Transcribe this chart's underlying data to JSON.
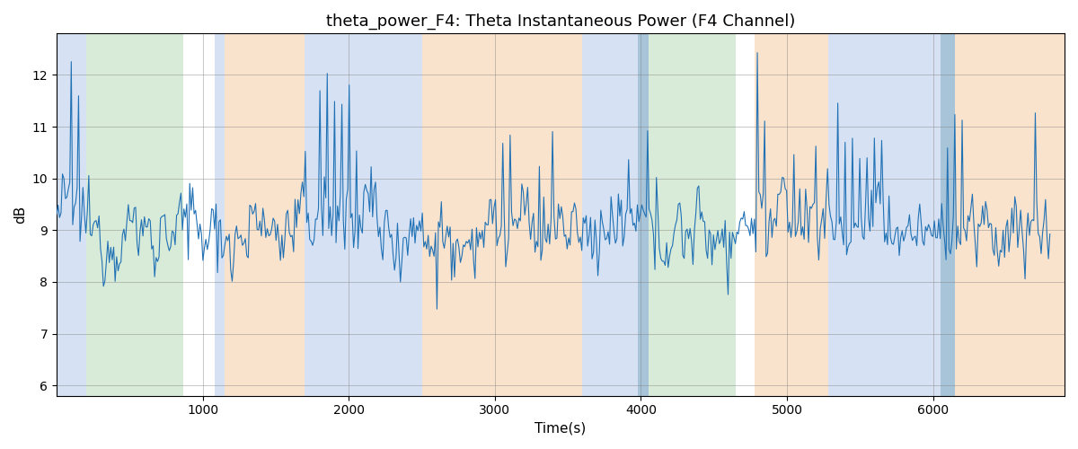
{
  "title": "theta_power_F4: Theta Instantaneous Power (F4 Channel)",
  "xlabel": "Time(s)",
  "ylabel": "dB",
  "xlim": [
    0,
    6900
  ],
  "ylim": [
    5.8,
    12.8
  ],
  "yticks": [
    6,
    7,
    8,
    9,
    10,
    11,
    12
  ],
  "xticks": [
    1000,
    2000,
    3000,
    4000,
    5000,
    6000
  ],
  "line_color": "#2171b5",
  "line_width": 0.8,
  "title_fontsize": 13,
  "axis_label_fontsize": 11,
  "regions": [
    {
      "start": 0,
      "end": 200,
      "color": "#aec6e8",
      "alpha": 0.5
    },
    {
      "start": 200,
      "end": 870,
      "color": "#b2d8b2",
      "alpha": 0.5
    },
    {
      "start": 1080,
      "end": 1150,
      "color": "#aec6e8",
      "alpha": 0.5
    },
    {
      "start": 1150,
      "end": 1700,
      "color": "#f5c99a",
      "alpha": 0.5
    },
    {
      "start": 1700,
      "end": 2500,
      "color": "#aec6e8",
      "alpha": 0.5
    },
    {
      "start": 2500,
      "end": 3600,
      "color": "#f5c99a",
      "alpha": 0.5
    },
    {
      "start": 3600,
      "end": 3980,
      "color": "#aec6e8",
      "alpha": 0.5
    },
    {
      "start": 3980,
      "end": 4050,
      "color": "#8ab0cc",
      "alpha": 0.75
    },
    {
      "start": 4050,
      "end": 4650,
      "color": "#b2d8b2",
      "alpha": 0.5
    },
    {
      "start": 4780,
      "end": 5280,
      "color": "#f5c99a",
      "alpha": 0.5
    },
    {
      "start": 5280,
      "end": 6050,
      "color": "#aec6e8",
      "alpha": 0.5
    },
    {
      "start": 6050,
      "end": 6150,
      "color": "#8ab0cc",
      "alpha": 0.75
    },
    {
      "start": 6150,
      "end": 6900,
      "color": "#f5c99a",
      "alpha": 0.5
    }
  ],
  "n_points": 680,
  "signal_mean": 9.0,
  "signal_std": 0.75,
  "seed": 12345
}
